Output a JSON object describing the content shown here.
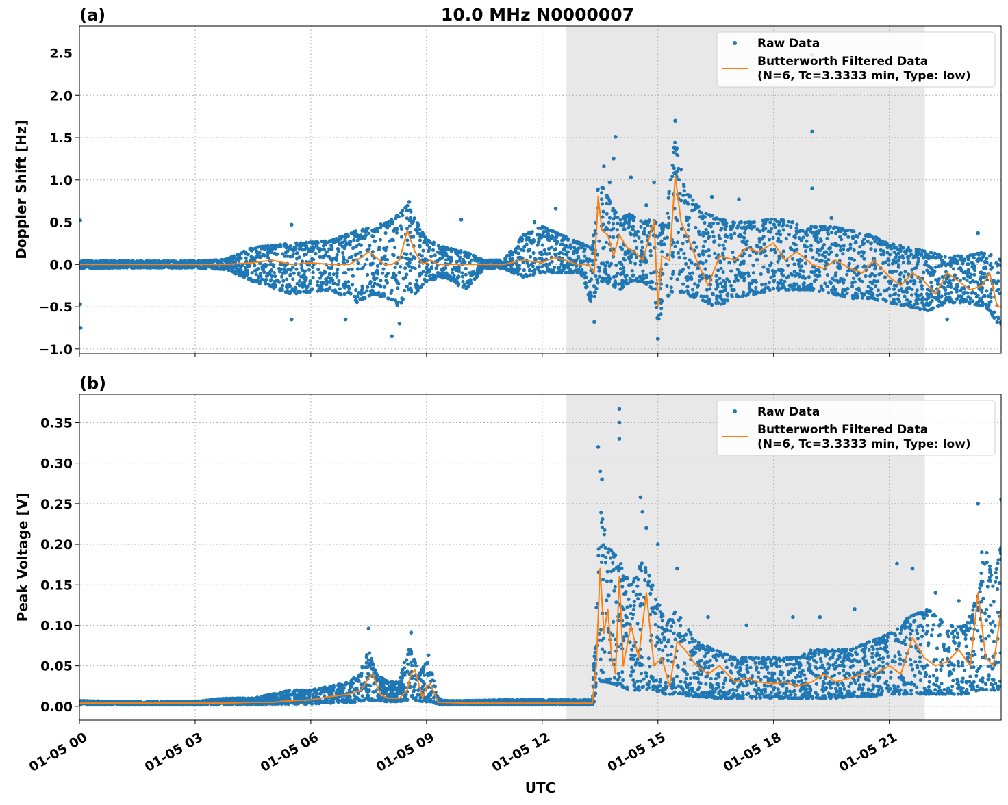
{
  "figure": {
    "title": "10.0 MHz N0000007",
    "xlabel": "UTC",
    "x_tick_labels": [
      "01-05 00",
      "01-05 03",
      "01-05 06",
      "01-05 09",
      "01-05 12",
      "01-05 15",
      "01-05 18",
      "01-05 21"
    ],
    "legend_raw": "Raw Data",
    "legend_filtered_line1": "Butterworth Filtered Data",
    "legend_filtered_line2": "(N=6, Tc=3.3333 min, Type: low)",
    "colors": {
      "raw": "#1f77b4",
      "filtered": "#ff7f0e",
      "shade": "#e8e8e8",
      "grid": "#b0b0b0"
    }
  },
  "chart_data": [
    {
      "type": "scatter",
      "panel_label": "(a)",
      "title": "10.0 MHz N0000007",
      "xlabel": "",
      "ylabel": "Doppler Shift [Hz]",
      "x_unit": "hours UTC on 01-05",
      "xlim": [
        0,
        23.9
      ],
      "ylim": [
        -1.05,
        2.82
      ],
      "yticks": [
        -1.0,
        -0.5,
        0.0,
        0.5,
        1.0,
        1.5,
        2.0,
        2.5
      ],
      "ytick_labels": [
        "−1.0",
        "−0.5",
        "0.0",
        "0.5",
        "1.0",
        "1.5",
        "2.0",
        "2.5"
      ],
      "grid": true,
      "legend": "top-right",
      "shaded_region_x": [
        12.63,
        21.92
      ],
      "series": [
        {
          "name": "Raw Data",
          "style": "points",
          "envelope": {
            "x": [
              0,
              1,
              2,
              3,
              3.8,
              4.5,
              5.5,
              6.5,
              7.2,
              7.6,
              8.0,
              8.3,
              8.5,
              8.7,
              9.0,
              9.5,
              10.0,
              10.5,
              11.0,
              11.5,
              12.0,
              12.5,
              13.0,
              13.3,
              13.45,
              13.6,
              13.8,
              14.0,
              14.3,
              14.6,
              14.9,
              15.0,
              15.2,
              15.45,
              15.7,
              16.0,
              16.5,
              17.0,
              17.5,
              18.0,
              18.5,
              19.0,
              19.5,
              20.0,
              20.5,
              21.0,
              21.5,
              22.0,
              22.5,
              23.0,
              23.5,
              23.9
            ],
            "upper": [
              0.05,
              0.04,
              0.04,
              0.04,
              0.06,
              0.2,
              0.25,
              0.28,
              0.4,
              0.45,
              0.5,
              0.6,
              0.7,
              0.55,
              0.3,
              0.2,
              0.15,
              0.05,
              0.05,
              0.35,
              0.45,
              0.35,
              0.25,
              0.2,
              0.95,
              0.9,
              0.7,
              0.55,
              0.6,
              0.5,
              0.55,
              0.45,
              0.5,
              1.5,
              0.9,
              0.7,
              0.55,
              0.5,
              0.5,
              0.55,
              0.5,
              0.45,
              0.45,
              0.4,
              0.35,
              0.25,
              0.2,
              0.15,
              0.1,
              0.1,
              0.15,
              0.05
            ],
            "lower": [
              -0.05,
              -0.04,
              -0.04,
              -0.04,
              -0.06,
              -0.2,
              -0.35,
              -0.3,
              -0.45,
              -0.35,
              -0.4,
              -0.5,
              -0.3,
              -0.35,
              -0.2,
              -0.15,
              -0.3,
              -0.05,
              -0.05,
              -0.15,
              -0.1,
              -0.1,
              -0.1,
              -0.5,
              -0.2,
              -0.2,
              -0.25,
              -0.3,
              -0.2,
              -0.2,
              -0.3,
              -0.7,
              -0.4,
              -0.3,
              -0.35,
              -0.4,
              -0.5,
              -0.4,
              -0.35,
              -0.3,
              -0.3,
              -0.3,
              -0.35,
              -0.4,
              -0.4,
              -0.45,
              -0.5,
              -0.55,
              -0.45,
              -0.45,
              -0.5,
              -0.75
            ]
          },
          "spikes": [
            {
              "x": 0.02,
              "y": 0.52
            },
            {
              "x": 0.02,
              "y": -0.47
            },
            {
              "x": 0.03,
              "y": -0.75
            },
            {
              "x": 5.5,
              "y": 0.47
            },
            {
              "x": 5.5,
              "y": -0.65
            },
            {
              "x": 6.9,
              "y": -0.65
            },
            {
              "x": 8.1,
              "y": -0.85
            },
            {
              "x": 8.3,
              "y": -0.7
            },
            {
              "x": 8.55,
              "y": 0.74
            },
            {
              "x": 9.9,
              "y": 0.53
            },
            {
              "x": 11.8,
              "y": 0.5
            },
            {
              "x": 12.35,
              "y": 0.66
            },
            {
              "x": 13.35,
              "y": -0.68
            },
            {
              "x": 13.6,
              "y": 1.16
            },
            {
              "x": 13.75,
              "y": 0.97
            },
            {
              "x": 13.85,
              "y": 1.25
            },
            {
              "x": 13.9,
              "y": 1.51
            },
            {
              "x": 14.3,
              "y": 1.03
            },
            {
              "x": 14.7,
              "y": 0.7
            },
            {
              "x": 14.9,
              "y": 0.97
            },
            {
              "x": 15.0,
              "y": -0.88
            },
            {
              "x": 15.45,
              "y": 1.7
            },
            {
              "x": 15.5,
              "y": 1.1
            },
            {
              "x": 15.8,
              "y": 0.82
            },
            {
              "x": 16.4,
              "y": 0.8
            },
            {
              "x": 17.1,
              "y": 0.77
            },
            {
              "x": 19.0,
              "y": 2.48
            },
            {
              "x": 19.0,
              "y": 1.57
            },
            {
              "x": 19.0,
              "y": 0.9
            },
            {
              "x": 19.5,
              "y": 0.55
            },
            {
              "x": 22.5,
              "y": -0.65
            },
            {
              "x": 23.3,
              "y": 0.37
            }
          ]
        },
        {
          "name": "Butterworth Filtered Data",
          "style": "line",
          "x": [
            0,
            1,
            2,
            3,
            3.8,
            4.5,
            5.0,
            5.5,
            6.0,
            6.5,
            7.0,
            7.3,
            7.5,
            7.7,
            7.9,
            8.1,
            8.3,
            8.5,
            8.7,
            8.9,
            9.1,
            9.3,
            9.6,
            10.0,
            10.5,
            11.0,
            11.5,
            12.0,
            12.3,
            12.6,
            12.9,
            13.2,
            13.35,
            13.45,
            13.55,
            13.7,
            13.85,
            14.0,
            14.2,
            14.4,
            14.6,
            14.8,
            14.9,
            15.0,
            15.1,
            15.3,
            15.45,
            15.6,
            15.8,
            16.0,
            16.3,
            16.6,
            17.0,
            17.3,
            17.6,
            18.0,
            18.3,
            18.6,
            19.0,
            19.3,
            19.6,
            20.0,
            20.3,
            20.6,
            21.0,
            21.3,
            21.6,
            21.9,
            22.2,
            22.5,
            22.8,
            23.1,
            23.4,
            23.6,
            23.8,
            23.9
          ],
          "y": [
            0.0,
            0.0,
            0.0,
            0.0,
            0.0,
            0.02,
            0.05,
            0.0,
            0.02,
            0.0,
            0.0,
            0.08,
            0.15,
            0.08,
            0.0,
            0.0,
            0.05,
            0.4,
            0.15,
            0.0,
            0.05,
            0.0,
            0.0,
            0.0,
            0.0,
            0.0,
            0.05,
            0.02,
            0.08,
            0.05,
            0.0,
            0.0,
            -0.1,
            0.8,
            0.4,
            0.35,
            0.1,
            0.35,
            0.2,
            0.15,
            0.05,
            0.35,
            0.52,
            -0.5,
            0.1,
            0.05,
            1.05,
            0.5,
            0.3,
            0.05,
            -0.25,
            0.1,
            0.05,
            0.2,
            0.15,
            0.25,
            0.05,
            0.15,
            0.0,
            -0.05,
            0.05,
            -0.05,
            -0.1,
            0.05,
            -0.15,
            -0.25,
            -0.1,
            -0.2,
            -0.35,
            -0.1,
            -0.2,
            -0.3,
            -0.25,
            -0.1,
            -0.5,
            -0.5
          ]
        }
      ]
    },
    {
      "type": "scatter",
      "panel_label": "(b)",
      "title": "",
      "xlabel": "UTC",
      "ylabel": "Peak Voltage [V]",
      "x_unit": "hours UTC on 01-05",
      "xlim": [
        0,
        23.9
      ],
      "ylim": [
        -0.017,
        0.385
      ],
      "yticks": [
        0.0,
        0.05,
        0.1,
        0.15,
        0.2,
        0.25,
        0.3,
        0.35
      ],
      "ytick_labels": [
        "0.00",
        "0.05",
        "0.10",
        "0.15",
        "0.20",
        "0.25",
        "0.30",
        "0.35"
      ],
      "grid": true,
      "legend": "top-right",
      "shaded_region_x": [
        12.63,
        21.92
      ],
      "series": [
        {
          "name": "Raw Data",
          "style": "points",
          "envelope": {
            "x": [
              0,
              1,
              2,
              3,
              3.8,
              4.5,
              5.0,
              5.5,
              6.0,
              6.5,
              7.0,
              7.3,
              7.5,
              7.7,
              8.0,
              8.3,
              8.5,
              8.6,
              8.8,
              9.0,
              9.1,
              9.3,
              9.5,
              10.0,
              11.0,
              12.0,
              13.0,
              13.3,
              13.4,
              13.5,
              13.7,
              14.0,
              14.3,
              14.6,
              14.9,
              15.2,
              15.5,
              16.0,
              16.5,
              17.0,
              17.5,
              18.0,
              18.5,
              19.0,
              19.5,
              20.0,
              20.5,
              21.0,
              21.5,
              22.0,
              22.5,
              23.0,
              23.3,
              23.5,
              23.7,
              23.9
            ],
            "upper": [
              0.007,
              0.006,
              0.006,
              0.006,
              0.01,
              0.01,
              0.015,
              0.02,
              0.02,
              0.025,
              0.03,
              0.045,
              0.07,
              0.04,
              0.03,
              0.03,
              0.07,
              0.07,
              0.04,
              0.055,
              0.05,
              0.01,
              0.007,
              0.007,
              0.008,
              0.008,
              0.008,
              0.008,
              0.12,
              0.25,
              0.2,
              0.18,
              0.15,
              0.18,
              0.15,
              0.1,
              0.12,
              0.08,
              0.07,
              0.06,
              0.06,
              0.06,
              0.06,
              0.07,
              0.07,
              0.07,
              0.08,
              0.09,
              0.11,
              0.12,
              0.1,
              0.1,
              0.14,
              0.2,
              0.15,
              0.2
            ],
            "lower": [
              0.002,
              0.002,
              0.002,
              0.002,
              0.002,
              0.002,
              0.003,
              0.003,
              0.003,
              0.004,
              0.005,
              0.006,
              0.008,
              0.007,
              0.006,
              0.006,
              0.008,
              0.01,
              0.006,
              0.006,
              0.005,
              0.003,
              0.002,
              0.002,
              0.002,
              0.002,
              0.002,
              0.002,
              0.01,
              0.03,
              0.03,
              0.025,
              0.02,
              0.02,
              0.02,
              0.015,
              0.015,
              0.012,
              0.01,
              0.01,
              0.01,
              0.01,
              0.01,
              0.01,
              0.01,
              0.012,
              0.012,
              0.015,
              0.015,
              0.015,
              0.015,
              0.015,
              0.02,
              0.02,
              0.02,
              0.02
            ]
          },
          "spikes": [
            {
              "x": 7.5,
              "y": 0.096
            },
            {
              "x": 8.6,
              "y": 0.091
            },
            {
              "x": 9.05,
              "y": 0.063
            },
            {
              "x": 13.45,
              "y": 0.32
            },
            {
              "x": 13.5,
              "y": 0.29
            },
            {
              "x": 13.55,
              "y": 0.28
            },
            {
              "x": 14.0,
              "y": 0.367
            },
            {
              "x": 14.0,
              "y": 0.35
            },
            {
              "x": 14.0,
              "y": 0.33
            },
            {
              "x": 14.55,
              "y": 0.258
            },
            {
              "x": 14.6,
              "y": 0.24
            },
            {
              "x": 14.7,
              "y": 0.22
            },
            {
              "x": 15.0,
              "y": 0.2
            },
            {
              "x": 15.5,
              "y": 0.17
            },
            {
              "x": 16.3,
              "y": 0.11
            },
            {
              "x": 17.3,
              "y": 0.1
            },
            {
              "x": 18.5,
              "y": 0.11
            },
            {
              "x": 19.2,
              "y": 0.11
            },
            {
              "x": 20.1,
              "y": 0.12
            },
            {
              "x": 21.2,
              "y": 0.176
            },
            {
              "x": 21.6,
              "y": 0.17
            },
            {
              "x": 22.2,
              "y": 0.14
            },
            {
              "x": 22.8,
              "y": 0.13
            },
            {
              "x": 23.3,
              "y": 0.25
            },
            {
              "x": 23.4,
              "y": 0.19
            },
            {
              "x": 23.9,
              "y": 0.255
            }
          ]
        },
        {
          "name": "Butterworth Filtered Data",
          "style": "line",
          "x": [
            0,
            1,
            2,
            3,
            3.8,
            4.5,
            5.0,
            5.5,
            6.0,
            6.5,
            7.0,
            7.3,
            7.5,
            7.6,
            7.8,
            8.0,
            8.3,
            8.5,
            8.6,
            8.7,
            8.9,
            9.0,
            9.1,
            9.3,
            10.0,
            11.0,
            12.0,
            13.0,
            13.3,
            13.4,
            13.5,
            13.6,
            13.7,
            13.8,
            13.9,
            14.0,
            14.1,
            14.3,
            14.5,
            14.7,
            14.9,
            15.1,
            15.3,
            15.5,
            15.7,
            16.0,
            16.3,
            16.6,
            17.0,
            17.3,
            17.6,
            18.0,
            18.3,
            18.6,
            19.0,
            19.3,
            19.6,
            20.0,
            20.3,
            20.6,
            21.0,
            21.3,
            21.6,
            21.9,
            22.2,
            22.5,
            22.8,
            23.1,
            23.3,
            23.5,
            23.7,
            23.9
          ],
          "y": [
            0.004,
            0.004,
            0.004,
            0.004,
            0.004,
            0.005,
            0.005,
            0.007,
            0.008,
            0.012,
            0.015,
            0.02,
            0.035,
            0.04,
            0.015,
            0.01,
            0.01,
            0.02,
            0.04,
            0.045,
            0.01,
            0.025,
            0.028,
            0.005,
            0.004,
            0.004,
            0.004,
            0.004,
            0.004,
            0.05,
            0.17,
            0.09,
            0.12,
            0.06,
            0.04,
            0.16,
            0.05,
            0.1,
            0.06,
            0.14,
            0.05,
            0.06,
            0.025,
            0.08,
            0.07,
            0.05,
            0.04,
            0.05,
            0.03,
            0.035,
            0.03,
            0.028,
            0.03,
            0.025,
            0.03,
            0.04,
            0.03,
            0.035,
            0.04,
            0.04,
            0.05,
            0.04,
            0.085,
            0.06,
            0.05,
            0.055,
            0.07,
            0.05,
            0.14,
            0.06,
            0.05,
            0.12
          ]
        }
      ]
    }
  ]
}
